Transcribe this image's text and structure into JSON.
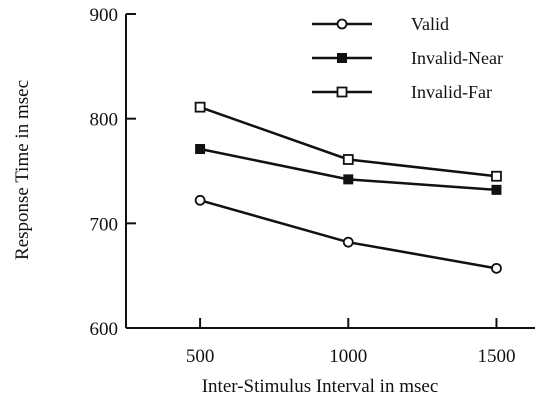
{
  "chart_data": {
    "type": "line",
    "title": "",
    "xlabel": "Inter-Stimulus Interval in msec",
    "ylabel": "Response Time in msec",
    "x": [
      500,
      1000,
      1500
    ],
    "x_tick_labels": [
      "500",
      "1000",
      "1500"
    ],
    "xlim": [
      250,
      1630
    ],
    "ylim": [
      600,
      900
    ],
    "y_ticks": [
      600,
      700,
      800,
      900
    ],
    "y_tick_labels": [
      "600",
      "700",
      "800",
      "900"
    ],
    "grid": false,
    "legend_position": "top-right",
    "series": [
      {
        "name": "Valid",
        "marker": "open-circle",
        "values": [
          722,
          682,
          657
        ]
      },
      {
        "name": "Invalid-Near",
        "marker": "filled-square",
        "values": [
          771,
          742,
          732
        ]
      },
      {
        "name": "Invalid-Far",
        "marker": "open-square",
        "values": [
          811,
          761,
          745
        ]
      }
    ],
    "colors": {
      "line": "#111111",
      "background": "#ffffff"
    }
  }
}
